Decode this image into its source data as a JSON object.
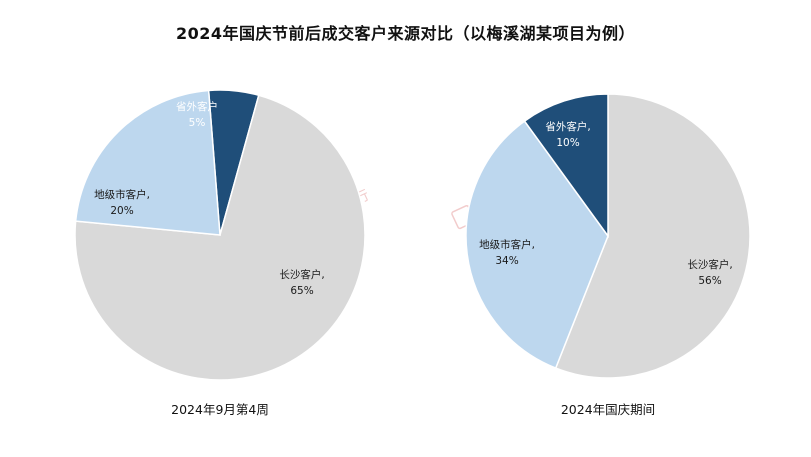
{
  "title": "2024年国庆节前后成交客户来源对比（以梅溪湖某项目为例）",
  "watermark": "世联行",
  "colors": {
    "长沙客户": "#d9d9d9",
    "地级市客户": "#bdd7ee",
    "省外客户": "#1f4e79"
  },
  "chart_data": [
    {
      "type": "pie",
      "caption": "2024年9月第4周",
      "slices": [
        {
          "name": "省外客户",
          "value": 5,
          "label": "省外客户",
          "pct": "5%"
        },
        {
          "name": "长沙客户",
          "value": 65,
          "label": "长沙客户,",
          "pct": "65%"
        },
        {
          "name": "地级市客户",
          "value": 20,
          "label": "地级市客户,",
          "pct": "20%"
        }
      ]
    },
    {
      "type": "pie",
      "caption": "2024年国庆期间",
      "slices": [
        {
          "name": "长沙客户",
          "value": 56,
          "label": "长沙客户,",
          "pct": "56%"
        },
        {
          "name": "地级市客户",
          "value": 34,
          "label": "地级市客户,",
          "pct": "34%"
        },
        {
          "name": "省外客户",
          "value": 10,
          "label": "省外客户,",
          "pct": "10%"
        }
      ]
    }
  ]
}
